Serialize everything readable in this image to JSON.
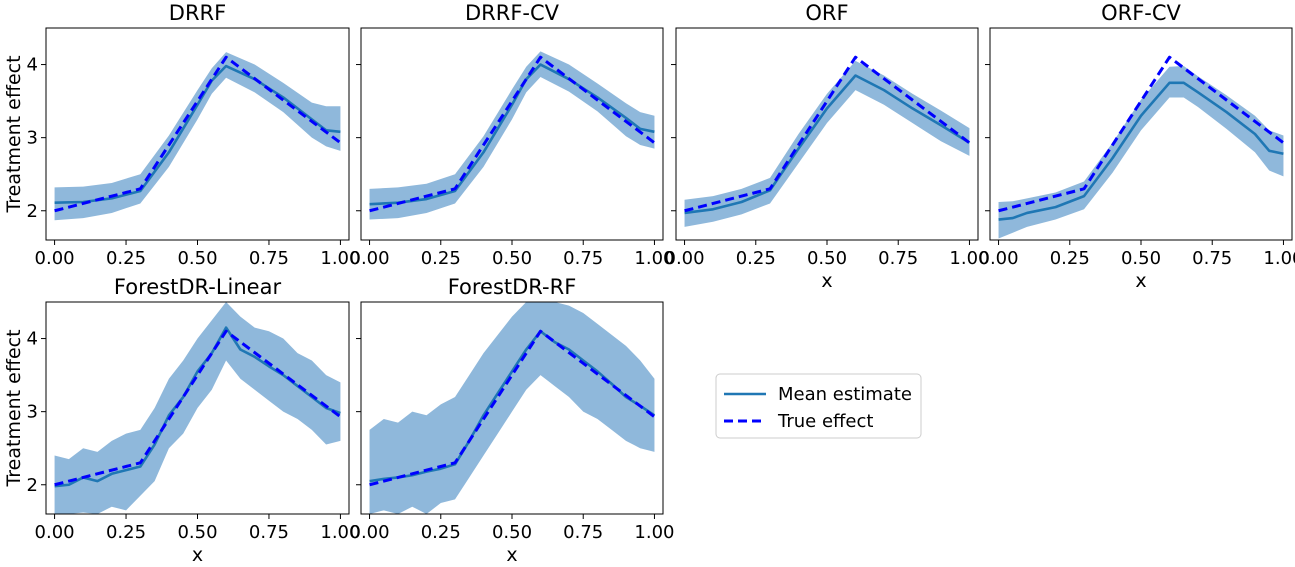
{
  "chart_data": [
    {
      "type": "line",
      "title": "DRRF",
      "xlabel": "",
      "ylabel": "Treatment effect",
      "xlim": [
        -0.03,
        1.03
      ],
      "ylim": [
        1.6,
        4.5
      ],
      "xticks": [
        "0.00",
        "0.25",
        "0.50",
        "0.75",
        "1.00"
      ],
      "yticks": [
        "2",
        "3",
        "4"
      ],
      "show_xtick_labels": true,
      "show_ytick_labels": true,
      "series": [
        {
          "name": "Mean estimate",
          "x": [
            0.0,
            0.1,
            0.2,
            0.3,
            0.4,
            0.5,
            0.55,
            0.6,
            0.7,
            0.8,
            0.9,
            0.95,
            1.0
          ],
          "y": [
            2.11,
            2.12,
            2.17,
            2.27,
            2.8,
            3.45,
            3.78,
            3.98,
            3.8,
            3.55,
            3.25,
            3.1,
            3.08
          ]
        },
        {
          "name": "True effect",
          "x": [
            0.0,
            0.3,
            0.6,
            1.0
          ],
          "y": [
            2.0,
            2.3,
            4.1,
            2.93
          ]
        }
      ],
      "band": {
        "x": [
          0.0,
          0.1,
          0.2,
          0.3,
          0.4,
          0.5,
          0.55,
          0.6,
          0.7,
          0.8,
          0.9,
          0.95,
          1.0
        ],
        "lower": [
          1.87,
          1.9,
          1.97,
          2.1,
          2.6,
          3.25,
          3.6,
          3.82,
          3.62,
          3.35,
          3.0,
          2.88,
          2.82
        ],
        "upper": [
          2.32,
          2.33,
          2.38,
          2.5,
          3.03,
          3.65,
          3.95,
          4.17,
          4.0,
          3.75,
          3.48,
          3.43,
          3.43
        ]
      }
    },
    {
      "type": "line",
      "title": "DRRF-CV",
      "xlabel": "",
      "ylabel": "",
      "xlim": [
        -0.03,
        1.03
      ],
      "ylim": [
        1.6,
        4.5
      ],
      "xticks": [
        "0.00",
        "0.25",
        "0.50",
        "0.75",
        "1.00"
      ],
      "yticks": [
        "2",
        "3",
        "4"
      ],
      "show_xtick_labels": true,
      "show_ytick_labels": false,
      "series": [
        {
          "name": "Mean estimate",
          "x": [
            0.0,
            0.1,
            0.2,
            0.3,
            0.4,
            0.5,
            0.55,
            0.6,
            0.7,
            0.8,
            0.9,
            0.95,
            1.0
          ],
          "y": [
            2.09,
            2.11,
            2.16,
            2.27,
            2.8,
            3.45,
            3.8,
            4.0,
            3.8,
            3.55,
            3.27,
            3.12,
            3.08
          ]
        },
        {
          "name": "True effect",
          "x": [
            0.0,
            0.3,
            0.6,
            1.0
          ],
          "y": [
            2.0,
            2.3,
            4.1,
            2.93
          ]
        }
      ],
      "band": {
        "x": [
          0.0,
          0.1,
          0.2,
          0.3,
          0.4,
          0.5,
          0.55,
          0.6,
          0.7,
          0.8,
          0.9,
          0.95,
          1.0
        ],
        "lower": [
          1.88,
          1.9,
          1.97,
          2.1,
          2.6,
          3.25,
          3.62,
          3.83,
          3.63,
          3.36,
          3.02,
          2.9,
          2.85
        ],
        "upper": [
          2.3,
          2.32,
          2.37,
          2.5,
          3.02,
          3.66,
          3.97,
          4.18,
          4.0,
          3.74,
          3.47,
          3.35,
          3.3
        ]
      }
    },
    {
      "type": "line",
      "title": "ORF",
      "xlabel": "x",
      "ylabel": "",
      "xlim": [
        -0.03,
        1.03
      ],
      "ylim": [
        1.6,
        4.5
      ],
      "xticks": [
        "0.00",
        "0.25",
        "0.50",
        "0.75",
        "1.00"
      ],
      "yticks": [
        "2",
        "3",
        "4"
      ],
      "show_xtick_labels": true,
      "show_ytick_labels": false,
      "series": [
        {
          "name": "Mean estimate",
          "x": [
            0.0,
            0.1,
            0.2,
            0.3,
            0.4,
            0.5,
            0.6,
            0.7,
            0.8,
            0.9,
            1.0
          ],
          "y": [
            1.97,
            2.02,
            2.12,
            2.28,
            2.85,
            3.4,
            3.85,
            3.65,
            3.4,
            3.17,
            2.93
          ]
        },
        {
          "name": "True effect",
          "x": [
            0.0,
            0.3,
            0.6,
            1.0
          ],
          "y": [
            2.0,
            2.3,
            4.1,
            2.93
          ]
        }
      ],
      "band": {
        "x": [
          0.0,
          0.1,
          0.2,
          0.3,
          0.4,
          0.5,
          0.6,
          0.7,
          0.8,
          0.9,
          1.0
        ],
        "lower": [
          1.78,
          1.85,
          1.95,
          2.1,
          2.65,
          3.2,
          3.65,
          3.45,
          3.2,
          2.95,
          2.75
        ],
        "upper": [
          2.15,
          2.2,
          2.3,
          2.45,
          3.05,
          3.6,
          4.05,
          3.85,
          3.6,
          3.37,
          3.13
        ]
      }
    },
    {
      "type": "line",
      "title": "ORF-CV",
      "xlabel": "x",
      "ylabel": "",
      "xlim": [
        -0.03,
        1.03
      ],
      "ylim": [
        1.6,
        4.5
      ],
      "xticks": [
        "0.00",
        "0.25",
        "0.50",
        "0.75",
        "1.00"
      ],
      "yticks": [
        "2",
        "3",
        "4"
      ],
      "show_xtick_labels": true,
      "show_ytick_labels": false,
      "series": [
        {
          "name": "Mean estimate",
          "x": [
            0.0,
            0.05,
            0.1,
            0.2,
            0.3,
            0.4,
            0.5,
            0.6,
            0.65,
            0.7,
            0.8,
            0.9,
            0.95,
            1.0
          ],
          "y": [
            1.88,
            1.9,
            1.97,
            2.05,
            2.2,
            2.72,
            3.3,
            3.75,
            3.75,
            3.62,
            3.35,
            3.05,
            2.82,
            2.78
          ]
        },
        {
          "name": "True effect",
          "x": [
            0.0,
            0.3,
            0.6,
            1.0
          ],
          "y": [
            2.0,
            2.3,
            4.1,
            2.93
          ]
        }
      ],
      "band": {
        "x": [
          0.0,
          0.05,
          0.1,
          0.2,
          0.3,
          0.4,
          0.5,
          0.6,
          0.65,
          0.7,
          0.8,
          0.9,
          0.95,
          1.0
        ],
        "lower": [
          1.62,
          1.7,
          1.78,
          1.88,
          2.02,
          2.52,
          3.1,
          3.55,
          3.55,
          3.42,
          3.12,
          2.8,
          2.55,
          2.47
        ],
        "upper": [
          2.12,
          2.13,
          2.17,
          2.25,
          2.4,
          2.93,
          3.52,
          3.97,
          3.98,
          3.84,
          3.58,
          3.3,
          3.1,
          3.03
        ]
      }
    },
    {
      "type": "line",
      "title": "ForestDR-Linear",
      "xlabel": "x",
      "ylabel": "Treatment effect",
      "xlim": [
        -0.03,
        1.03
      ],
      "ylim": [
        1.6,
        4.5
      ],
      "xticks": [
        "0.00",
        "0.25",
        "0.50",
        "0.75",
        "1.00"
      ],
      "yticks": [
        "2",
        "3",
        "4"
      ],
      "show_xtick_labels": true,
      "show_ytick_labels": true,
      "series": [
        {
          "name": "Mean estimate",
          "x": [
            0.0,
            0.05,
            0.1,
            0.15,
            0.2,
            0.25,
            0.3,
            0.35,
            0.4,
            0.45,
            0.5,
            0.55,
            0.6,
            0.65,
            0.7,
            0.75,
            0.8,
            0.85,
            0.9,
            0.95,
            1.0
          ],
          "y": [
            1.98,
            2.0,
            2.1,
            2.05,
            2.15,
            2.2,
            2.25,
            2.55,
            2.95,
            3.2,
            3.55,
            3.8,
            4.15,
            3.85,
            3.75,
            3.62,
            3.5,
            3.35,
            3.2,
            3.05,
            2.98
          ]
        },
        {
          "name": "True effect",
          "x": [
            0.0,
            0.3,
            0.6,
            1.0
          ],
          "y": [
            2.0,
            2.3,
            4.1,
            2.93
          ]
        }
      ],
      "band": {
        "x": [
          0.0,
          0.05,
          0.1,
          0.15,
          0.2,
          0.25,
          0.3,
          0.35,
          0.4,
          0.45,
          0.5,
          0.55,
          0.6,
          0.65,
          0.7,
          0.75,
          0.8,
          0.85,
          0.9,
          0.95,
          1.0
        ],
        "lower": [
          1.6,
          1.6,
          1.62,
          1.6,
          1.7,
          1.65,
          1.85,
          2.05,
          2.5,
          2.7,
          3.05,
          3.3,
          3.7,
          3.45,
          3.3,
          3.15,
          3.0,
          2.9,
          2.75,
          2.55,
          2.6
        ],
        "upper": [
          2.4,
          2.35,
          2.5,
          2.45,
          2.6,
          2.7,
          2.75,
          3.05,
          3.45,
          3.7,
          4.0,
          4.25,
          4.5,
          4.3,
          4.15,
          4.1,
          4.0,
          3.8,
          3.7,
          3.5,
          3.4
        ]
      }
    },
    {
      "type": "line",
      "title": "ForestDR-RF",
      "xlabel": "x",
      "ylabel": "",
      "xlim": [
        -0.03,
        1.03
      ],
      "ylim": [
        1.6,
        4.5
      ],
      "xticks": [
        "0.00",
        "0.25",
        "0.50",
        "0.75",
        "1.00"
      ],
      "yticks": [
        "2",
        "3",
        "4"
      ],
      "show_xtick_labels": true,
      "show_ytick_labels": false,
      "series": [
        {
          "name": "Mean estimate",
          "x": [
            0.0,
            0.05,
            0.1,
            0.15,
            0.2,
            0.25,
            0.3,
            0.35,
            0.4,
            0.45,
            0.5,
            0.55,
            0.6,
            0.65,
            0.7,
            0.75,
            0.8,
            0.85,
            0.9,
            0.95,
            1.0
          ],
          "y": [
            2.05,
            2.08,
            2.1,
            2.13,
            2.18,
            2.22,
            2.28,
            2.6,
            2.95,
            3.25,
            3.55,
            3.85,
            4.1,
            3.95,
            3.85,
            3.7,
            3.55,
            3.38,
            3.2,
            3.08,
            2.95
          ]
        },
        {
          "name": "True effect",
          "x": [
            0.0,
            0.3,
            0.6,
            1.0
          ],
          "y": [
            2.0,
            2.3,
            4.1,
            2.93
          ]
        }
      ],
      "band": {
        "x": [
          0.0,
          0.05,
          0.1,
          0.15,
          0.2,
          0.25,
          0.3,
          0.35,
          0.4,
          0.45,
          0.5,
          0.55,
          0.6,
          0.65,
          0.7,
          0.75,
          0.8,
          0.85,
          0.9,
          0.95,
          1.0
        ],
        "lower": [
          1.6,
          1.65,
          1.6,
          1.7,
          1.6,
          1.75,
          1.8,
          2.1,
          2.4,
          2.7,
          3.0,
          3.3,
          3.5,
          3.35,
          3.2,
          3.0,
          2.9,
          2.75,
          2.6,
          2.5,
          2.45
        ],
        "upper": [
          2.75,
          2.9,
          2.85,
          3.0,
          2.95,
          3.1,
          3.2,
          3.5,
          3.8,
          4.05,
          4.3,
          4.5,
          4.5,
          4.5,
          4.45,
          4.35,
          4.2,
          4.05,
          3.9,
          3.7,
          3.45
        ]
      }
    }
  ],
  "legend": {
    "entries": [
      {
        "label": "Mean estimate",
        "style": "solid"
      },
      {
        "label": "True effect",
        "style": "dashed"
      }
    ]
  },
  "colors": {
    "mean": "#1f77b4",
    "band": "#8fb8db",
    "true": "#0000ff"
  }
}
